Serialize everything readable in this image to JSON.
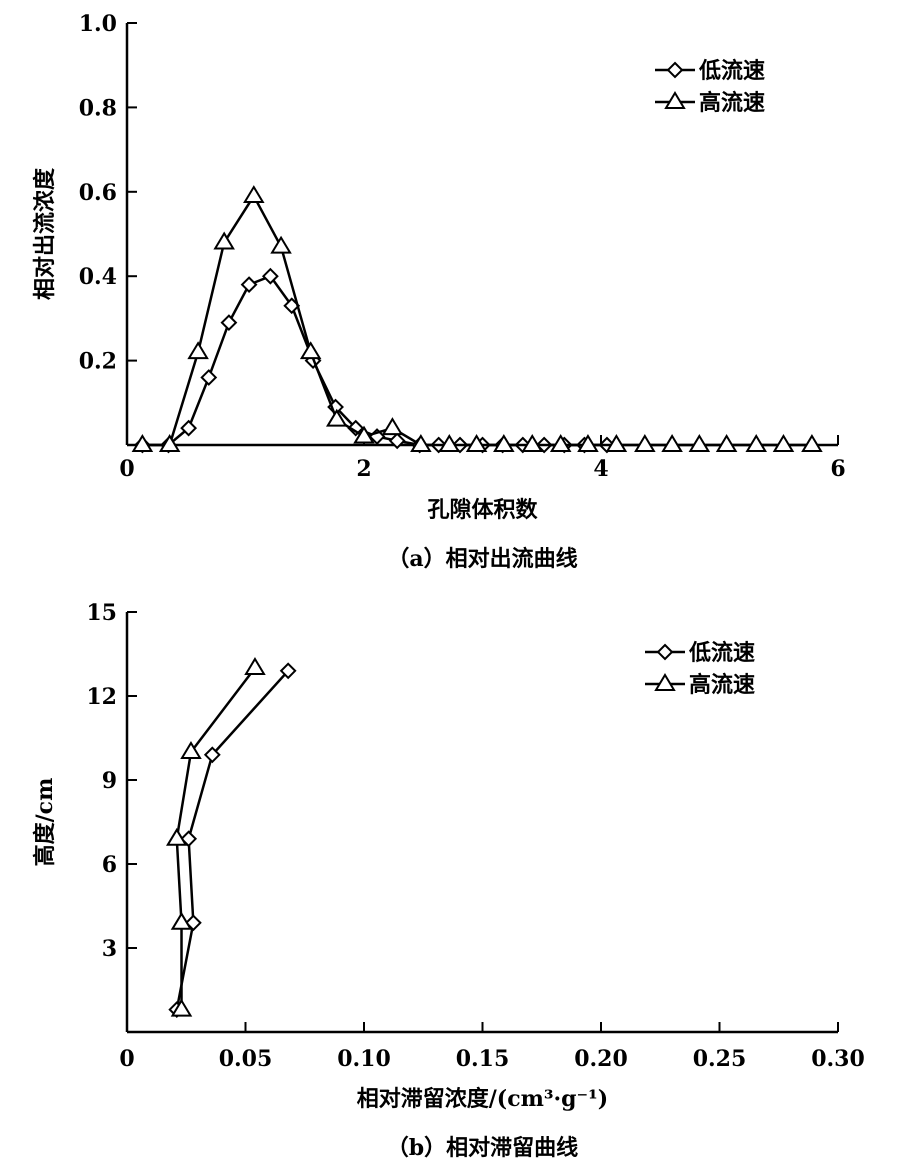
{
  "chart_data": [
    {
      "type": "line",
      "xlabel": "孔隙体积数",
      "ylabel": "相对出流浓度",
      "caption": "（a）相对出流曲线",
      "xlim": [
        0,
        6
      ],
      "ylim": [
        0,
        1.0
      ],
      "xticks": [
        "0",
        "2",
        "4",
        "6"
      ],
      "yticks": [
        "0.2",
        "0.4",
        "0.6",
        "0.8",
        "1.0"
      ],
      "xtick_values": [
        0,
        2,
        4,
        6
      ],
      "ytick_values": [
        0.2,
        0.4,
        0.6,
        0.8,
        1.0
      ],
      "grid": false,
      "legend_position": "top-right",
      "series": [
        {
          "name": "低流速",
          "marker": "diamond",
          "x": [
            0.13,
            0.35,
            0.52,
            0.69,
            0.86,
            1.03,
            1.21,
            1.39,
            1.57,
            1.76,
            1.93,
            2.11,
            2.28,
            2.47,
            2.63,
            2.81,
            3.0,
            3.17,
            3.34,
            3.52,
            3.69,
            3.86,
            4.05
          ],
          "y": [
            0,
            0,
            0.04,
            0.16,
            0.29,
            0.38,
            0.4,
            0.33,
            0.2,
            0.09,
            0.04,
            0.02,
            0.01,
            0,
            0,
            0,
            0,
            0,
            0,
            0,
            0,
            0,
            0
          ]
        },
        {
          "name": "高流速",
          "marker": "triangle",
          "x": [
            0.13,
            0.36,
            0.6,
            0.82,
            1.07,
            1.3,
            1.55,
            1.77,
            2.0,
            2.24,
            2.48,
            2.72,
            2.95,
            3.18,
            3.42,
            3.66,
            3.89,
            4.13,
            4.37,
            4.6,
            4.83,
            5.06,
            5.31,
            5.54,
            5.78
          ],
          "y": [
            0,
            0,
            0.22,
            0.48,
            0.59,
            0.47,
            0.22,
            0.06,
            0.02,
            0.04,
            0,
            0,
            0,
            0,
            0,
            0,
            0,
            0,
            0,
            0,
            0,
            0,
            0,
            0,
            0
          ]
        }
      ]
    },
    {
      "type": "line",
      "xlabel": "相对滞留浓度/(cm³·g⁻¹)",
      "ylabel": "高度/cm",
      "caption": "（b）相对滞留曲线",
      "xlim": [
        0,
        0.3
      ],
      "ylim": [
        0,
        15
      ],
      "xticks": [
        "0",
        "0.05",
        "0.10",
        "0.15",
        "0.20",
        "0.25",
        "0.30"
      ],
      "yticks": [
        "3",
        "6",
        "9",
        "12",
        "15"
      ],
      "xtick_values": [
        0,
        0.05,
        0.1,
        0.15,
        0.2,
        0.25,
        0.3
      ],
      "ytick_values": [
        3,
        6,
        9,
        12,
        15
      ],
      "grid": false,
      "legend_position": "top-right",
      "series": [
        {
          "name": "低流速",
          "marker": "diamond",
          "x": [
            0.021,
            0.028,
            0.026,
            0.036,
            0.068
          ],
          "y": [
            0.8,
            3.9,
            6.9,
            9.9,
            12.9
          ]
        },
        {
          "name": "高流速",
          "marker": "triangle",
          "x": [
            0.023,
            0.023,
            0.021,
            0.027,
            0.054
          ],
          "y": [
            0.8,
            3.9,
            6.9,
            10.0,
            13.0
          ]
        }
      ]
    }
  ]
}
